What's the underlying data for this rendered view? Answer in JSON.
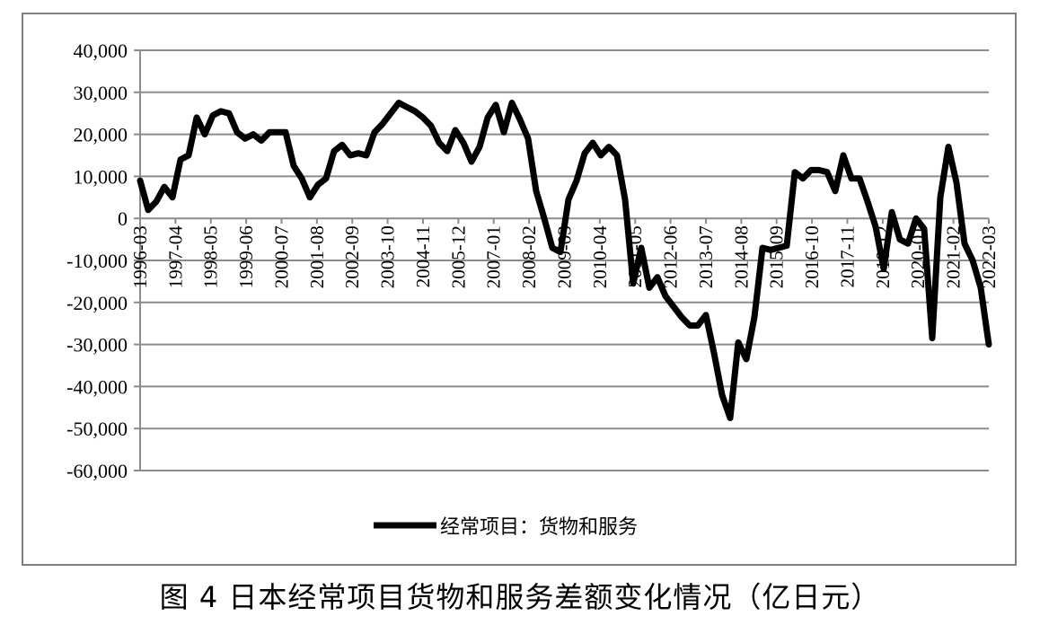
{
  "caption": "图 4 日本经常项目货物和服务差额变化情况（亿日元）",
  "chart_data": {
    "type": "line",
    "title": "",
    "xlabel": "",
    "ylabel": "",
    "ylim": [
      -60000,
      40000
    ],
    "yticks": [
      40000,
      30000,
      20000,
      10000,
      0,
      -10000,
      -20000,
      -30000,
      -40000,
      -50000,
      -60000
    ],
    "ytick_labels": [
      "40,000",
      "30,000",
      "20,000",
      "10,000",
      "0",
      "-10,000",
      "-20,000",
      "-30,000",
      "-40,000",
      "-50,000",
      "-60,000"
    ],
    "grid": true,
    "legend_position": "bottom",
    "xtick_labels": [
      "1996-03",
      "1997-04",
      "1998-05",
      "1999-06",
      "2000-07",
      "2001-08",
      "2002-09",
      "2003-10",
      "2004-11",
      "2005-12",
      "2007-01",
      "2008-02",
      "2009-03",
      "2010-04",
      "2011-05",
      "2012-06",
      "2013-07",
      "2014-08",
      "2015-09",
      "2016-10",
      "2017-11",
      "2018-12",
      "2020-01",
      "2021-02",
      "2022-03"
    ],
    "series": [
      {
        "name": "经常项目：货物和服务",
        "color": "#000000",
        "values": [
          9000,
          2000,
          4000,
          7500,
          5000,
          14000,
          15000,
          24000,
          20000,
          24500,
          25500,
          25000,
          20500,
          19000,
          20000,
          18500,
          20500,
          20500,
          20500,
          12500,
          9500,
          5000,
          8000,
          9500,
          16000,
          17500,
          15000,
          15500,
          15000,
          20500,
          22500,
          25000,
          27500,
          26500,
          25500,
          24000,
          22000,
          18000,
          16000,
          21000,
          18000,
          13500,
          17000,
          24000,
          27000,
          20500,
          27500,
          23500,
          19000,
          6500,
          0,
          -7000,
          -8000,
          4500,
          9000,
          15500,
          18000,
          15000,
          17000,
          15000,
          4500,
          -15500,
          -7000,
          -16500,
          -14000,
          -18500,
          -21000,
          -23500,
          -25500,
          -25500,
          -23000,
          -32000,
          -42000,
          -47500,
          -29500,
          -33500,
          -23500,
          -7000,
          -7500,
          -7000,
          -6500,
          11000,
          9500,
          11500,
          11500,
          11000,
          6500,
          15000,
          9500,
          9500,
          4000,
          -2000,
          -12000,
          1500,
          -5000,
          -6000,
          0,
          -2500,
          -28500,
          5000,
          17000,
          8500,
          -6000,
          -10000,
          -16500,
          -30000
        ]
      }
    ]
  }
}
